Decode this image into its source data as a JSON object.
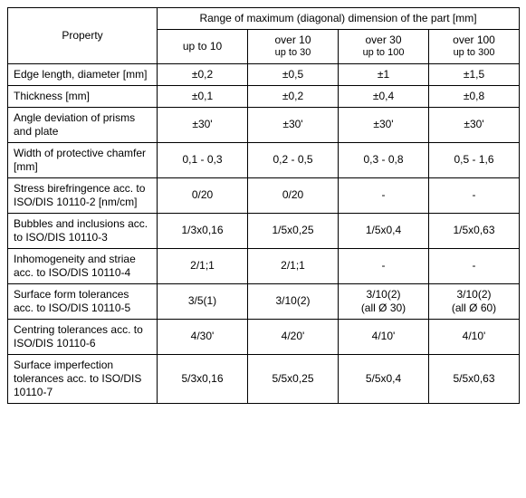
{
  "table": {
    "header_span_label": "Range of maximum (diagonal) dimension of the part [mm]",
    "property_label": "Property",
    "columns": [
      {
        "line1": "up to 10",
        "line2": ""
      },
      {
        "line1": "over 10",
        "line2": "up to 30"
      },
      {
        "line1": "over 30",
        "line2": "up to 100"
      },
      {
        "line1": "over 100",
        "line2": "up to 300"
      }
    ],
    "rows": [
      {
        "prop": "Edge length, diameter [mm]",
        "v": [
          "±0,2",
          "±0,5",
          "±1",
          "±1,5"
        ]
      },
      {
        "prop": "Thickness [mm]",
        "v": [
          "±0,1",
          "±0,2",
          "±0,4",
          "±0,8"
        ]
      },
      {
        "prop": "Angle deviation of prisms and plate",
        "v": [
          "±30'",
          "±30'",
          "±30'",
          "±30'"
        ]
      },
      {
        "prop": "Width of protective chamfer [mm]",
        "v": [
          "0,1  -  0,3",
          "0,2  -  0,5",
          "0,3  -  0,8",
          "0,5  -  1,6"
        ]
      },
      {
        "prop": "Stress birefringence acc. to ISO/DIS 10110-2 [nm/cm]",
        "v": [
          "0/20",
          "0/20",
          "-",
          "-"
        ]
      },
      {
        "prop": "Bubbles and inclusions acc. to ISO/DIS 10110-3",
        "v": [
          "1/3x0,16",
          "1/5x0,25",
          "1/5x0,4",
          "1/5x0,63"
        ]
      },
      {
        "prop": "Inhomogeneity and striae acc. to ISO/DIS 10110-4",
        "v": [
          "2/1;1",
          "2/1;1",
          "-",
          "-"
        ]
      },
      {
        "prop": "Surface form tolerances acc. to ISO/DIS 10110-5",
        "v": [
          "3/5(1)",
          "3/10(2)",
          "3/10(2)\n(all Ø 30)",
          "3/10(2)\n(all Ø 60)"
        ]
      },
      {
        "prop": "Centring tolerances acc. to ISO/DIS 10110-6",
        "v": [
          "4/30'",
          "4/20'",
          "4/10'",
          "4/10'"
        ]
      },
      {
        "prop": "Surface imperfection tolerances acc. to ISO/DIS 10110-7",
        "v": [
          "5/3x0,16",
          "5/5x0,25",
          "5/5x0,4",
          "5/5x0,63"
        ]
      }
    ],
    "text_color": "#000000",
    "border_color": "#000000",
    "background": "#ffffff"
  }
}
